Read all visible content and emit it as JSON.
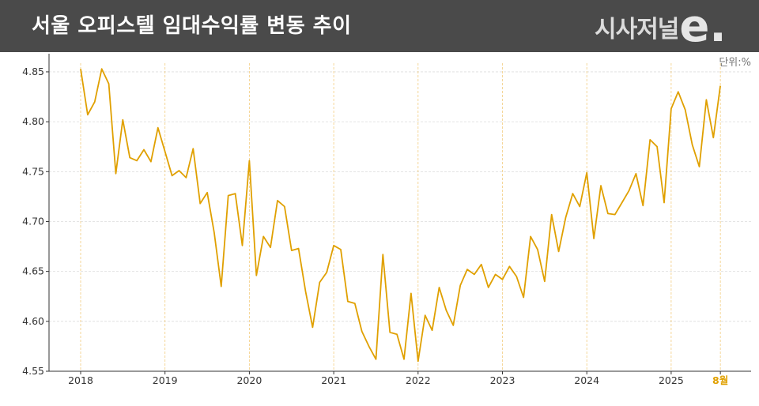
{
  "header": {
    "title": "서울 오피스텔 임대수익률 변동 추이",
    "brand_text": "시사저널",
    "brand_mark": "e."
  },
  "unit_label": "단위:%",
  "colors": {
    "header_bg": "#4a4a4a",
    "line": "#e0a000",
    "grid": "#dddddd",
    "highlight_label": "#e0a000"
  },
  "chart_data": {
    "type": "line",
    "title": "서울 오피스텔 임대수익률 변동 추이",
    "ylabel": "",
    "ylim": [
      4.55,
      4.865
    ],
    "yticks": [
      4.55,
      4.6,
      4.65,
      4.7,
      4.75,
      4.8,
      4.85
    ],
    "ytick_labels": [
      "4.55",
      "4.60",
      "4.65",
      "4.70",
      "4.75",
      "4.80",
      "4.85"
    ],
    "x_start_year": 2018,
    "xticks": [
      "2018",
      "2019",
      "2020",
      "2021",
      "2022",
      "2023",
      "2024",
      "2025",
      "8월"
    ],
    "highlight_xtick": "8월",
    "grid": true,
    "series": [
      {
        "values": [
          4.853,
          4.807,
          4.82,
          4.853,
          4.838,
          4.748,
          4.802,
          4.764,
          4.761,
          4.772,
          4.76,
          4.794,
          4.77,
          4.746,
          4.751,
          4.744,
          4.773,
          4.718,
          4.729,
          4.689,
          4.635,
          4.726,
          4.728,
          4.676,
          4.761,
          4.646,
          4.685,
          4.674,
          4.721,
          4.715,
          4.671,
          4.673,
          4.63,
          4.594,
          4.639,
          4.649,
          4.676,
          4.672,
          4.62,
          4.618,
          4.59,
          4.575,
          4.562,
          4.667,
          4.589,
          4.587,
          4.562,
          4.628,
          4.56,
          4.606,
          4.591,
          4.634,
          4.611,
          4.596,
          4.636,
          4.652,
          4.647,
          4.657,
          4.634,
          4.647,
          4.642,
          4.655,
          4.645,
          4.624,
          4.685,
          4.672,
          4.64,
          4.707,
          4.67,
          4.704,
          4.728,
          4.715,
          4.749,
          4.683,
          4.736,
          4.708,
          4.707,
          4.719,
          4.731,
          4.748,
          4.716,
          4.782,
          4.775,
          4.719,
          4.813,
          4.83,
          4.812,
          4.777,
          4.755,
          4.822,
          4.784,
          4.836
        ]
      }
    ]
  }
}
